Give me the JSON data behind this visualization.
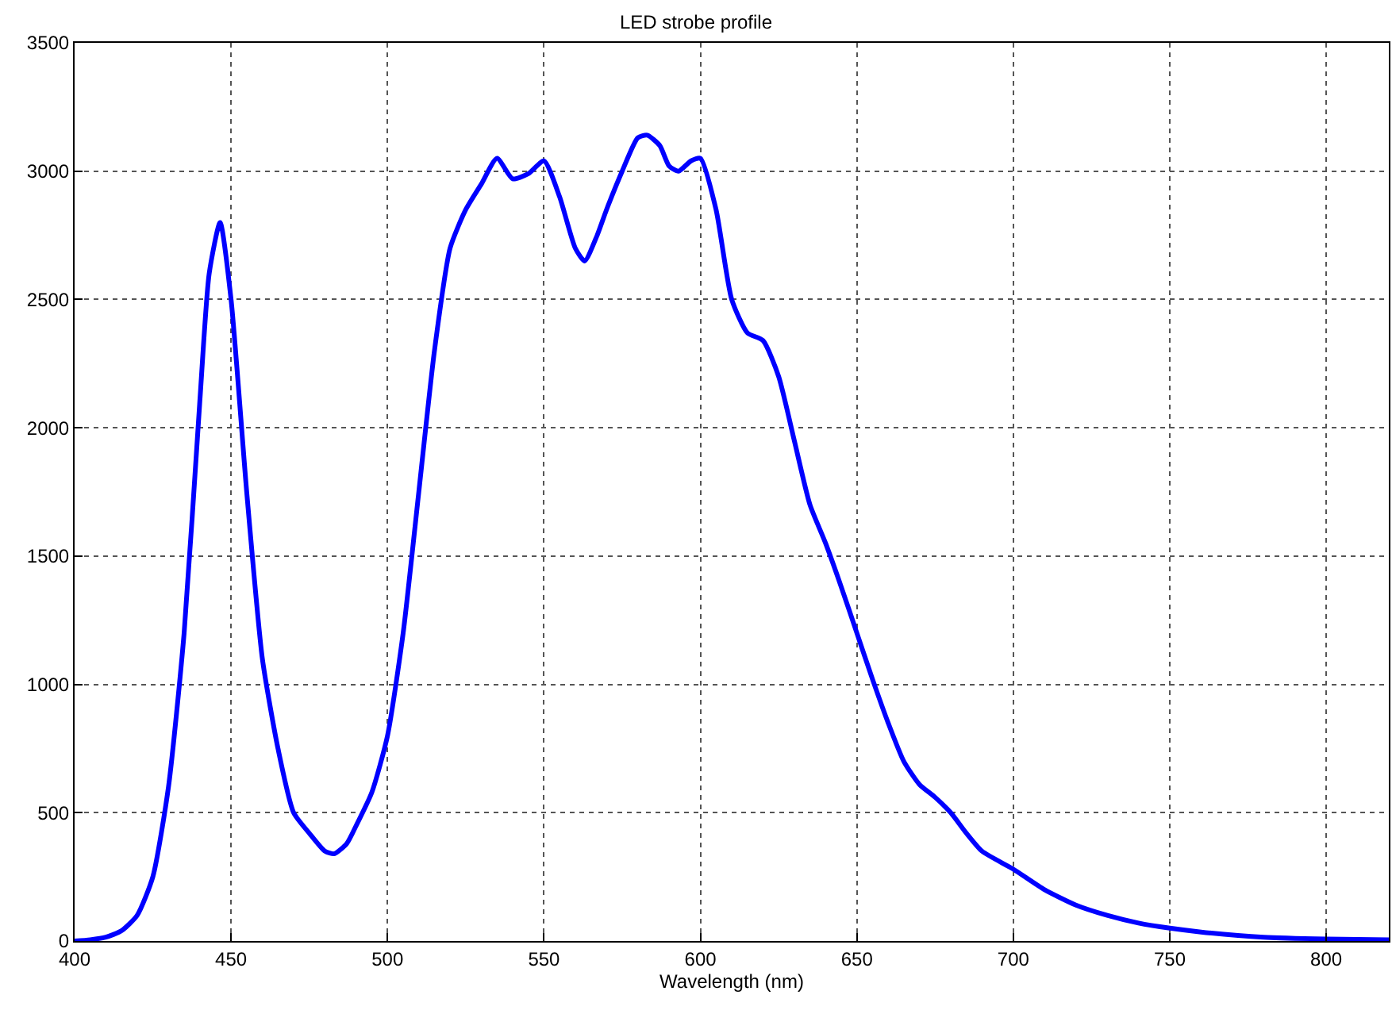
{
  "chart_data": {
    "type": "line",
    "title": "LED strobe profile",
    "xlabel": "Wavelength (nm)",
    "x": [
      400,
      405,
      410,
      415,
      420,
      425,
      430,
      435,
      440,
      443,
      446.5,
      450,
      455,
      460,
      465,
      470,
      475,
      480,
      483,
      487,
      490,
      495,
      500,
      505,
      510,
      515,
      520,
      525,
      530,
      535,
      540,
      545,
      550,
      555,
      560,
      563,
      567,
      570,
      575,
      580,
      583,
      587,
      590,
      593,
      597,
      600,
      605,
      610,
      615,
      620,
      625,
      630,
      635,
      640,
      645,
      650,
      655,
      660,
      665,
      670,
      675,
      680,
      685,
      690,
      700,
      710,
      720,
      730,
      740,
      750,
      760,
      780,
      800,
      820
    ],
    "series": [
      {
        "color": "#0000ff",
        "values": [
          0,
          5,
          15,
          40,
          100,
          250,
          600,
          1200,
          2100,
          2600,
          2800,
          2500,
          1750,
          1100,
          750,
          500,
          420,
          350,
          340,
          380,
          450,
          580,
          800,
          1200,
          1750,
          2300,
          2700,
          2850,
          2950,
          3050,
          2970,
          2990,
          3040,
          2900,
          2700,
          2650,
          2750,
          2850,
          3000,
          3130,
          3140,
          3100,
          3020,
          3000,
          3040,
          3050,
          2850,
          2500,
          2370,
          2340,
          2200,
          1950,
          1700,
          1550,
          1380,
          1200,
          1020,
          850,
          700,
          610,
          560,
          500,
          420,
          350,
          280,
          200,
          140,
          100,
          70,
          50,
          35,
          15,
          8,
          5
        ]
      }
    ],
    "xlim": [
      400,
      820
    ],
    "ylim": [
      0,
      3500
    ],
    "xticks": [
      400,
      450,
      500,
      550,
      600,
      650,
      700,
      750,
      800
    ],
    "yticks": [
      0,
      500,
      1000,
      1500,
      2000,
      2500,
      3000,
      3500
    ],
    "grid": true,
    "marker": "none",
    "line_style": "solid"
  }
}
